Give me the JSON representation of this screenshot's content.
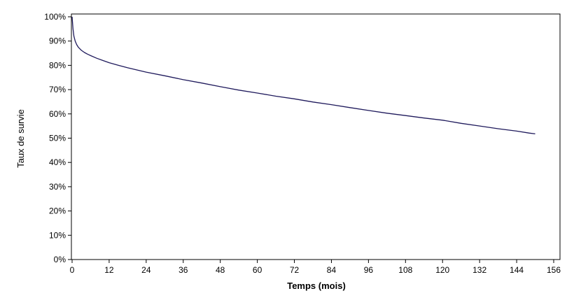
{
  "chart_data": {
    "type": "line",
    "title": "",
    "xlabel": "Temps (mois)",
    "ylabel": "Taux de survie",
    "xlim": [
      0,
      156
    ],
    "ylim": [
      0,
      100
    ],
    "x_ticks": [
      0,
      12,
      24,
      36,
      48,
      60,
      72,
      84,
      96,
      108,
      120,
      132,
      144,
      156
    ],
    "x_tick_labels": [
      "0",
      "12",
      "24",
      "36",
      "48",
      "60",
      "72",
      "84",
      "96",
      "108",
      "120",
      "132",
      "144",
      "156"
    ],
    "y_ticks": [
      0,
      10,
      20,
      30,
      40,
      50,
      60,
      70,
      80,
      90,
      100
    ],
    "y_tick_labels": [
      "0%",
      "10%",
      "20%",
      "30%",
      "40%",
      "50%",
      "60%",
      "70%",
      "80%",
      "90%",
      "100%"
    ],
    "grid": false,
    "series": [
      {
        "name": "Taux de survie",
        "color": "#1f1a5c",
        "x": [
          0,
          0.3,
          0.6,
          1,
          1.5,
          2,
          3,
          4,
          5,
          6,
          8,
          10,
          12,
          15,
          18,
          21,
          24,
          30,
          36,
          42,
          48,
          54,
          60,
          66,
          72,
          78,
          84,
          90,
          96,
          102,
          108,
          114,
          120,
          126,
          132,
          138,
          144,
          148,
          150
        ],
        "y": [
          100,
          95,
          92,
          90,
          88.5,
          87.5,
          86.2,
          85.3,
          84.6,
          84,
          82.9,
          82,
          81.1,
          80,
          79,
          78.1,
          77.2,
          75.7,
          74.1,
          72.7,
          71.2,
          69.8,
          68.6,
          67.3,
          66.2,
          64.9,
          63.8,
          62.6,
          61.4,
          60.3,
          59.3,
          58.3,
          57.4,
          56.1,
          55,
          53.9,
          52.9,
          52.1,
          51.8
        ]
      }
    ]
  }
}
